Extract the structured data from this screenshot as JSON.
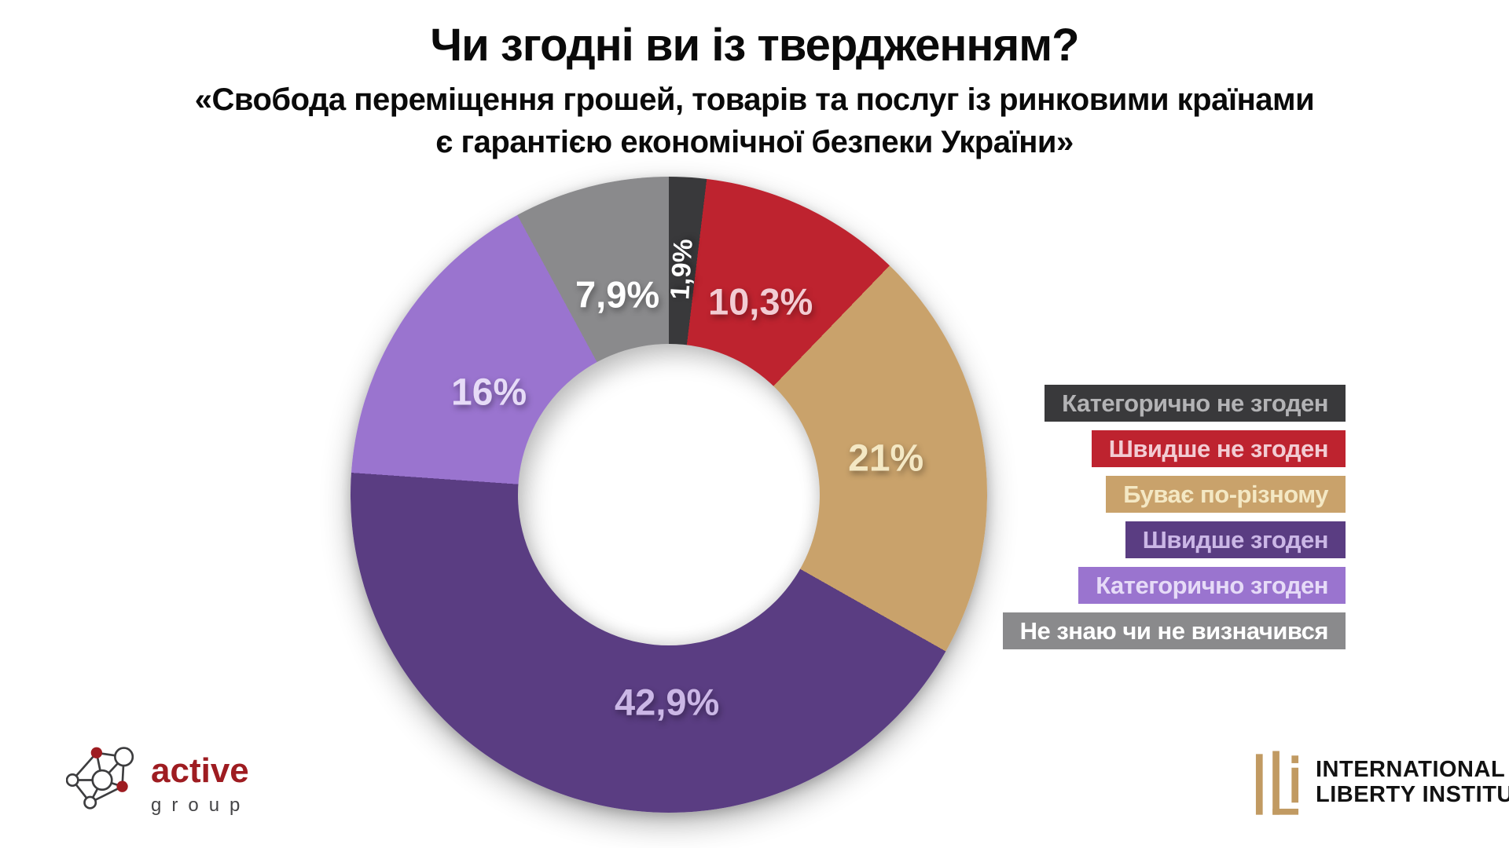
{
  "title": "Чи згодні ви із твердженням?",
  "subtitle": {
    "line1": "«Свобода переміщення грошей, товарів та послуг із ринковими країнами",
    "line2": "є гарантією економічної безпеки України»"
  },
  "chart_data": {
    "type": "pie",
    "donut": true,
    "start_angle_deg": 0,
    "direction": "clockwise",
    "legend_position": "right",
    "background": "#ffffff",
    "slices": [
      {
        "label": "Категорично не згоден",
        "value": 1.9,
        "value_label": "1,9%",
        "color": "#39393b",
        "label_color": "#ffffff",
        "legend_text_color": "#b3b3b5",
        "label_angle_deg": 3.4,
        "label_radius": 288,
        "label_font": 34,
        "label_rotated": true
      },
      {
        "label": "Швидше не згоден",
        "value": 10.3,
        "value_label": "10,3%",
        "color": "#be232f",
        "label_color": "#f2ccd3",
        "legend_text_color": "#f2ccd3",
        "label_angle_deg": 25.4,
        "label_radius": 272,
        "label_font": 47,
        "label_rotated": false
      },
      {
        "label": "Буває по-різному",
        "value": 21.0,
        "value_label": "21%",
        "color": "#c9a26b",
        "label_color": "#f4e8c4",
        "legend_text_color": "#f4e8c4",
        "label_angle_deg": 80.5,
        "label_radius": 280,
        "label_font": 48,
        "label_rotated": false
      },
      {
        "label": "Швидше згоден",
        "value": 42.9,
        "value_label": "42,9%",
        "color": "#5a3d82",
        "label_color": "#cbb7e6",
        "legend_text_color": "#cbb7e6",
        "label_angle_deg": 180.5,
        "label_radius": 264,
        "label_font": 47,
        "label_rotated": false
      },
      {
        "label": "Категорично згоден",
        "value": 16.0,
        "value_label": "16%",
        "color": "#9a74cf",
        "label_color": "#e6dbf7",
        "legend_text_color": "#e6dbf7",
        "label_angle_deg": 299.5,
        "label_radius": 263,
        "label_font": 48,
        "label_rotated": false
      },
      {
        "label": "Не знаю чи не визначився",
        "value": 7.9,
        "value_label": "7,9%",
        "color": "#8a8a8c",
        "label_color": "#ffffff",
        "legend_text_color": "#ffffff",
        "label_angle_deg": 345.6,
        "label_radius": 263,
        "label_font": 47,
        "label_rotated": false
      }
    ]
  },
  "footer": {
    "active_group": {
      "word1": "active",
      "word2": "group",
      "brand_red": "#9e1c21"
    },
    "ili": {
      "line1": "INTERNATIONAL",
      "line2": "LIBERTY INSTITUTE",
      "brand_gold": "#c19a62"
    }
  }
}
